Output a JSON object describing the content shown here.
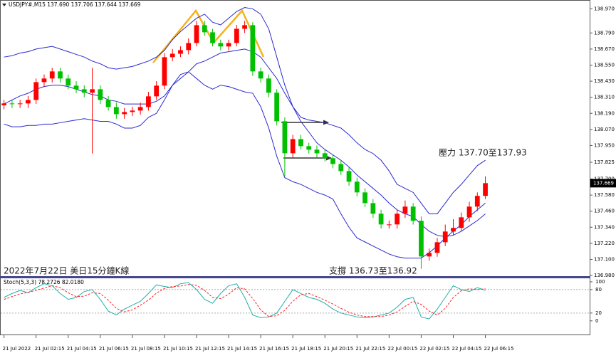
{
  "chart_data": [
    {
      "type": "candlestick",
      "title": "USDJPY#,M15 137.690 137.706 137.644 137.669",
      "annotations": [
        "壓力 137.70至137.93",
        "支撐 136.73至136.92",
        "2022年7月22日 美日15分鐘K線"
      ],
      "current_price": 137.669,
      "up_color": "#ff0000",
      "down_color": "#00c000",
      "band_color": "#2a2ad0",
      "xlim": [
        -0.5,
        73
      ],
      "xticks": [
        {
          "value": 0,
          "label": "21 Jul 2022"
        },
        {
          "value": 4,
          "label": "21 Jul 02:15"
        },
        {
          "value": 8,
          "label": "21 Jul 04:15"
        },
        {
          "value": 12,
          "label": "21 Jul 06:15"
        },
        {
          "value": 16,
          "label": "21 Jul 08:15"
        },
        {
          "value": 20,
          "label": "21 Jul 10:15"
        },
        {
          "value": 24,
          "label": "21 Jul 12:15"
        },
        {
          "value": 28,
          "label": "21 Jul 14:15"
        },
        {
          "value": 32,
          "label": "21 Jul 16:15"
        },
        {
          "value": 36,
          "label": "21 Jul 18:15"
        },
        {
          "value": 40,
          "label": "21 Jul 20:15"
        },
        {
          "value": 44,
          "label": "21 Jul 22:15"
        },
        {
          "value": 48,
          "label": "22 Jul 00:15"
        },
        {
          "value": 52,
          "label": "22 Jul 02:15"
        },
        {
          "value": 56,
          "label": "22 Jul 04:15"
        },
        {
          "value": 60,
          "label": "22 Jul 06:15"
        }
      ],
      "ylim": [
        136.975,
        139.02
      ],
      "yticks": [
        {
          "value": 138.97,
          "label": "138.970"
        },
        {
          "value": 138.79,
          "label": "138.790"
        },
        {
          "value": 138.67,
          "label": "138.670"
        },
        {
          "value": 138.55,
          "label": "138.550"
        },
        {
          "value": 138.43,
          "label": "138.430"
        },
        {
          "value": 138.31,
          "label": "138.310"
        },
        {
          "value": 138.19,
          "label": "138.190"
        },
        {
          "value": 138.07,
          "label": "138.070"
        },
        {
          "value": 137.95,
          "label": "137.950"
        },
        {
          "value": 137.825,
          "label": "137.825"
        },
        {
          "value": 137.7,
          "label": "137.700"
        },
        {
          "value": 137.58,
          "label": "137.580"
        },
        {
          "value": 137.46,
          "label": "137.460"
        },
        {
          "value": 137.34,
          "label": "137.340"
        },
        {
          "value": 137.22,
          "label": "137.220"
        },
        {
          "value": 137.1,
          "label": "137.100"
        },
        {
          "value": 136.98,
          "label": "136.980"
        }
      ],
      "open": [
        138.25,
        138.264,
        138.259,
        138.264,
        138.29,
        138.423,
        138.45,
        138.503,
        138.45,
        138.397,
        138.37,
        138.344,
        138.37,
        138.29,
        138.237,
        138.184,
        138.2,
        138.211,
        138.237,
        138.317,
        138.397,
        138.609,
        138.635,
        138.662,
        138.715,
        138.848,
        138.795,
        138.715,
        138.689,
        138.715,
        138.821,
        138.848,
        138.503,
        138.45,
        138.344,
        138.131,
        137.892,
        137.998,
        137.945,
        137.919,
        137.892,
        137.855,
        137.812,
        137.759,
        137.68,
        137.6,
        137.52,
        137.441,
        137.361,
        137.361,
        137.441,
        137.494,
        137.388,
        137.122,
        137.149,
        137.228,
        137.308,
        137.335,
        137.414,
        137.494,
        137.574
      ],
      "high": [
        138.29,
        138.29,
        138.29,
        138.32,
        138.45,
        138.48,
        138.53,
        138.53,
        138.48,
        138.43,
        138.4,
        138.53,
        138.4,
        138.32,
        138.27,
        138.23,
        138.24,
        138.27,
        138.35,
        138.43,
        138.64,
        138.67,
        138.69,
        138.75,
        138.88,
        138.88,
        138.82,
        138.74,
        138.74,
        138.85,
        138.88,
        138.87,
        138.53,
        138.48,
        138.37,
        138.16,
        138.03,
        138.03,
        137.97,
        137.95,
        137.92,
        137.88,
        137.84,
        137.79,
        137.71,
        137.63,
        137.55,
        137.47,
        137.39,
        137.47,
        137.54,
        137.52,
        137.42,
        137.18,
        137.26,
        137.36,
        137.4,
        137.45,
        137.53,
        137.6,
        137.72
      ],
      "low": [
        138.22,
        138.23,
        138.23,
        138.23,
        138.26,
        138.39,
        138.42,
        138.42,
        138.37,
        138.34,
        138.31,
        137.89,
        138.26,
        138.21,
        138.15,
        138.15,
        138.17,
        138.18,
        138.21,
        138.29,
        138.37,
        138.58,
        138.61,
        138.63,
        138.69,
        138.77,
        138.69,
        138.66,
        138.66,
        138.69,
        138.79,
        138.47,
        138.42,
        138.31,
        138.1,
        137.72,
        137.86,
        137.92,
        137.89,
        137.86,
        137.83,
        137.78,
        137.73,
        137.65,
        137.57,
        137.49,
        137.41,
        137.33,
        137.33,
        137.33,
        137.41,
        137.36,
        137.03,
        137.09,
        137.12,
        137.2,
        137.28,
        137.31,
        137.38,
        137.46,
        137.55
      ],
      "close": [
        138.264,
        138.259,
        138.264,
        138.29,
        138.423,
        138.45,
        138.503,
        138.45,
        138.397,
        138.37,
        138.344,
        138.37,
        138.29,
        138.237,
        138.184,
        138.2,
        138.211,
        138.237,
        138.317,
        138.397,
        138.609,
        138.635,
        138.662,
        138.715,
        138.848,
        138.795,
        138.715,
        138.689,
        138.715,
        138.821,
        138.848,
        138.503,
        138.45,
        138.344,
        138.131,
        137.892,
        137.998,
        137.945,
        137.919,
        137.892,
        137.855,
        137.812,
        137.759,
        137.68,
        137.6,
        137.52,
        137.441,
        137.361,
        137.361,
        137.441,
        137.494,
        137.388,
        137.122,
        137.149,
        137.228,
        137.308,
        137.335,
        137.414,
        137.494,
        137.574,
        137.669
      ],
      "bands": {
        "upper": [
          138.61,
          138.62,
          138.64,
          138.65,
          138.67,
          138.68,
          138.69,
          138.67,
          138.65,
          138.63,
          138.61,
          138.58,
          138.56,
          138.53,
          138.52,
          138.53,
          138.54,
          138.56,
          138.58,
          138.61,
          138.66,
          138.74,
          138.8,
          138.85,
          138.9,
          138.93,
          138.87,
          138.85,
          138.9,
          138.95,
          138.98,
          138.97,
          138.93,
          138.82,
          138.61,
          138.4,
          138.24,
          138.16,
          138.14,
          138.13,
          138.12,
          138.1,
          138.08,
          138.03,
          137.97,
          137.92,
          137.89,
          137.84,
          137.76,
          137.66,
          137.63,
          137.6,
          137.52,
          137.44,
          137.44,
          137.52,
          137.6,
          137.66,
          137.73,
          137.8,
          137.84
        ],
        "middle": [
          138.26,
          138.29,
          138.32,
          138.34,
          138.37,
          138.39,
          138.4,
          138.4,
          138.39,
          138.37,
          138.35,
          138.33,
          138.32,
          138.29,
          138.28,
          138.26,
          138.26,
          138.26,
          138.26,
          138.28,
          138.32,
          138.4,
          138.45,
          138.5,
          138.56,
          138.58,
          138.61,
          138.64,
          138.65,
          138.66,
          138.67,
          138.65,
          138.61,
          138.53,
          138.45,
          138.34,
          138.24,
          138.13,
          138.05,
          137.97,
          137.92,
          137.88,
          137.84,
          137.79,
          137.73,
          137.68,
          137.63,
          137.58,
          137.52,
          137.47,
          137.44,
          137.42,
          137.36,
          137.31,
          137.28,
          137.27,
          137.28,
          137.31,
          137.35,
          137.39,
          137.44
        ],
        "lower": [
          138.11,
          138.09,
          138.09,
          138.1,
          138.1,
          138.11,
          138.11,
          138.12,
          138.13,
          138.14,
          138.15,
          138.14,
          138.13,
          138.13,
          138.11,
          138.08,
          138.08,
          138.1,
          138.16,
          138.19,
          138.29,
          138.4,
          138.48,
          138.5,
          138.45,
          138.4,
          138.37,
          138.4,
          138.39,
          138.37,
          138.35,
          138.34,
          138.24,
          138.08,
          137.87,
          137.71,
          137.68,
          137.66,
          137.63,
          137.6,
          137.58,
          137.55,
          137.44,
          137.34,
          137.26,
          137.23,
          137.2,
          137.17,
          137.14,
          137.12,
          137.11,
          137.11,
          137.11,
          137.15,
          137.2,
          137.26,
          137.31,
          137.36,
          137.42,
          137.47,
          137.52
        ]
      }
    },
    {
      "type": "line",
      "title": "Stoch(5,3,3) 78.2726 82.0180",
      "xlim": [
        -0.5,
        73
      ],
      "ylim": [
        -35,
        109
      ],
      "yticks": [
        100,
        80,
        20,
        0
      ],
      "levels": [
        80,
        20
      ],
      "series": [
        {
          "color": "#20b0a8",
          "dash": false,
          "values": [
            60,
            70,
            78,
            72,
            85,
            95,
            90,
            70,
            55,
            60,
            75,
            80,
            55,
            25,
            15,
            30,
            40,
            50,
            70,
            92,
            88,
            85,
            95,
            98,
            80,
            55,
            45,
            70,
            90,
            95,
            60,
            15,
            8,
            10,
            20,
            50,
            80,
            70,
            60,
            55,
            45,
            30,
            20,
            15,
            10,
            8,
            10,
            15,
            20,
            35,
            55,
            60,
            10,
            5,
            30,
            60,
            90,
            80,
            75,
            85,
            78.2726
          ]
        },
        {
          "color": "#ff2020",
          "dash": true,
          "values": [
            55,
            62,
            69,
            73,
            78,
            84,
            90,
            85,
            72,
            62,
            63,
            72,
            70,
            53,
            32,
            23,
            28,
            40,
            53,
            71,
            83,
            88,
            89,
            93,
            91,
            78,
            60,
            57,
            68,
            85,
            82,
            57,
            28,
            11,
            13,
            27,
            50,
            67,
            70,
            62,
            53,
            43,
            32,
            22,
            15,
            11,
            11,
            11,
            15,
            23,
            37,
            50,
            42,
            25,
            15,
            32,
            60,
            77,
            82,
            80,
            82.018
          ]
        }
      ]
    }
  ]
}
